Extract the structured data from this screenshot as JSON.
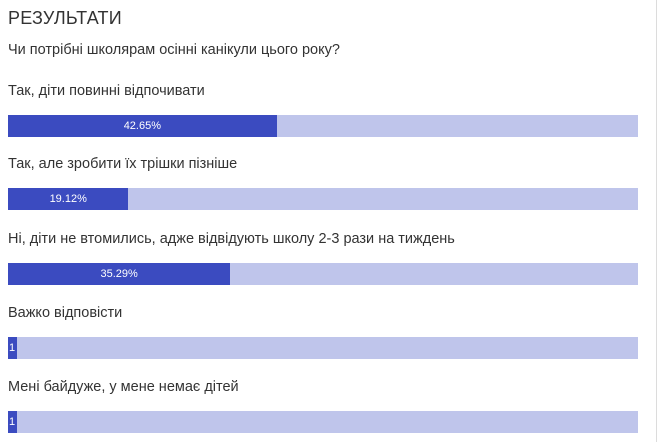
{
  "poll": {
    "header": "РЕЗУЛЬТАТИ",
    "question": "Чи потрібні школярам осінні канікули цього року?",
    "options": [
      {
        "label": "Так, діти повинні відпочивати",
        "value_text": "42.65%",
        "percent": 42.65
      },
      {
        "label": "Так, але зробити їх трішки пізніше",
        "value_text": "19.12%",
        "percent": 19.12
      },
      {
        "label": "Ні, діти не втомились, адже відвідують школу 2-3 рази на тиждень",
        "value_text": "35.29%",
        "percent": 35.29
      },
      {
        "label": "Важко відповісти",
        "value_text": "1",
        "percent": 1.47
      },
      {
        "label": "Мені байдуже, у мене немає дітей",
        "value_text": "1",
        "percent": 1.47
      }
    ]
  },
  "colors": {
    "bar_fill": "#3b4bc0",
    "bar_track": "#bfc5eb",
    "text": "#333333"
  }
}
